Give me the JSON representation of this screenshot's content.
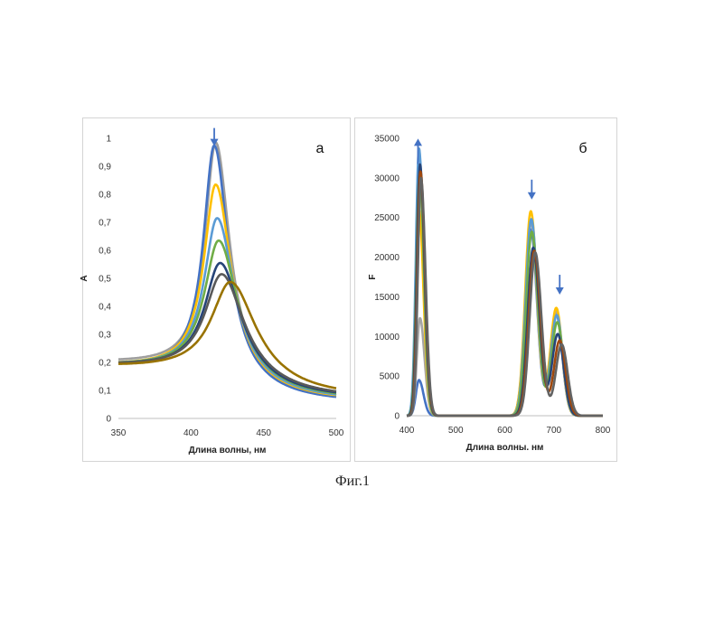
{
  "caption": "Фиг.1",
  "chart_data": [
    {
      "type": "line",
      "panel_label": "а",
      "xlabel": "Длина волны, нм",
      "ylabel": "A",
      "xlim": [
        350,
        500
      ],
      "ylim": [
        0,
        1
      ],
      "x_ticks": [
        "350",
        "400",
        "450",
        "500"
      ],
      "y_ticks": [
        "0",
        "0,1",
        "0,2",
        "0,3",
        "0,4",
        "0,5",
        "0,6",
        "0,7",
        "0,8",
        "0,9",
        "1"
      ],
      "grid": false,
      "annotations": [
        {
          "type": "arrow-down",
          "x": 416,
          "y": 0.985
        }
      ],
      "series": [
        {
          "color": "#9e9e9e",
          "peak_x": 417,
          "peak_y": 0.985,
          "width": 9,
          "baseline": 0.185,
          "tail": 0.06
        },
        {
          "color": "#4472c4",
          "peak_x": 416,
          "peak_y": 0.975,
          "width": 9,
          "baseline": 0.17,
          "tail": 0.055
        },
        {
          "color": "#ffc000",
          "peak_x": 417,
          "peak_y": 0.835,
          "width": 10,
          "baseline": 0.175,
          "tail": 0.06
        },
        {
          "color": "#5b9bd5",
          "peak_x": 418,
          "peak_y": 0.715,
          "width": 11,
          "baseline": 0.175,
          "tail": 0.062
        },
        {
          "color": "#70ad47",
          "peak_x": 419,
          "peak_y": 0.635,
          "width": 12,
          "baseline": 0.175,
          "tail": 0.065
        },
        {
          "color": "#264478",
          "peak_x": 420,
          "peak_y": 0.555,
          "width": 13,
          "baseline": 0.175,
          "tail": 0.068
        },
        {
          "color": "#595959",
          "peak_x": 421,
          "peak_y": 0.515,
          "width": 14,
          "baseline": 0.175,
          "tail": 0.07
        },
        {
          "color": "#997300",
          "peak_x": 427,
          "peak_y": 0.487,
          "width": 16,
          "baseline": 0.17,
          "tail": 0.072
        }
      ]
    },
    {
      "type": "line",
      "panel_label": "б",
      "xlabel": "Длина волны. нм",
      "ylabel": "F",
      "xlim": [
        400,
        800
      ],
      "ylim": [
        0,
        35000
      ],
      "x_ticks": [
        "400",
        "500",
        "600",
        "700",
        "800"
      ],
      "y_ticks": [
        "0",
        "5000",
        "10000",
        "15000",
        "20000",
        "25000",
        "30000",
        "35000"
      ],
      "grid": false,
      "annotations": [
        {
          "type": "arrow-up",
          "x": 423,
          "y": 34500
        },
        {
          "type": "arrow-down",
          "x": 655,
          "y": 27500
        },
        {
          "type": "arrow-down",
          "x": 712,
          "y": 15500
        }
      ],
      "series": [
        {
          "color": "#4472c4",
          "p1": 4500,
          "p1x": 425,
          "p2": 23500,
          "p2x": 653,
          "p3": 12800,
          "p3x": 705
        },
        {
          "color": "#a5a5a5",
          "p1": 12300,
          "p1x": 427,
          "p2": 24500,
          "p2x": 653,
          "p3": 13200,
          "p3x": 705
        },
        {
          "color": "#ffc000",
          "p1": 26000,
          "p1x": 425,
          "p2": 25800,
          "p2x": 653,
          "p3": 13600,
          "p3x": 705
        },
        {
          "color": "#5b9bd5",
          "p1": 33700,
          "p1x": 425,
          "p2": 24800,
          "p2x": 654,
          "p3": 12700,
          "p3x": 706
        },
        {
          "color": "#70ad47",
          "p1": 30500,
          "p1x": 426,
          "p2": 23200,
          "p2x": 655,
          "p3": 11800,
          "p3x": 707
        },
        {
          "color": "#264478",
          "p1": 31700,
          "p1x": 427,
          "p2": 21200,
          "p2x": 658,
          "p3": 10300,
          "p3x": 708
        },
        {
          "color": "#9e480e",
          "p1": 30800,
          "p1x": 428,
          "p2": 20800,
          "p2x": 660,
          "p3": 9500,
          "p3x": 712
        },
        {
          "color": "#636363",
          "p1": 30000,
          "p1x": 429,
          "p2": 20600,
          "p2x": 662,
          "p3": 9000,
          "p3x": 716
        }
      ]
    }
  ]
}
